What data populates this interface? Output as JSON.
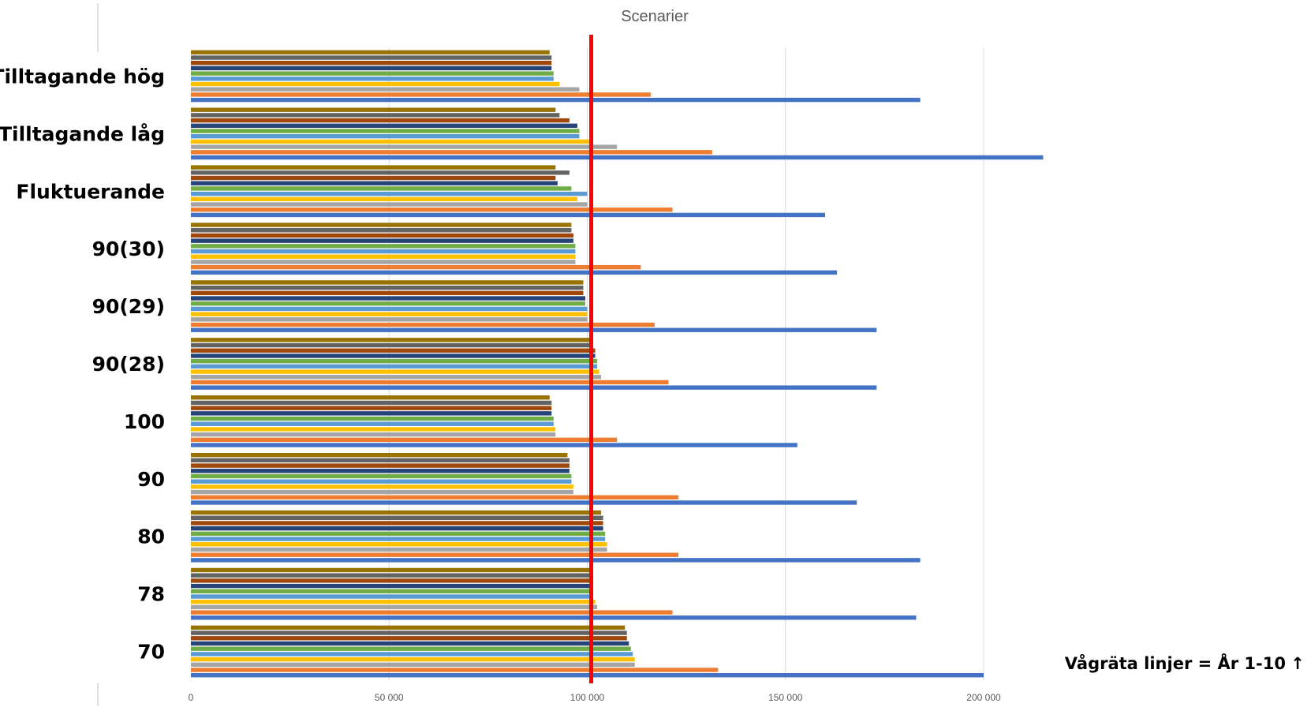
{
  "chart_data": {
    "type": "bar",
    "orientation": "horizontal",
    "title": "Scenarier",
    "categories": [
      "70",
      "78",
      "80",
      "90",
      "100",
      "90(28)",
      "90(29)",
      "90(30)",
      "Fluktuerande",
      "Tilltagande låg",
      "Tilltagande hög"
    ],
    "xlim": [
      0,
      200000
    ],
    "x_ticks": [
      0,
      50000,
      100000,
      150000,
      200000
    ],
    "x_tick_labels": [
      "0",
      "50 000",
      "100 000",
      "150 000",
      "200 000"
    ],
    "gridlines": true,
    "reference_line": {
      "value": 101000,
      "color": "#ff0000"
    },
    "annotation": "Vågräta linjer = År 1-10",
    "annotation_arrow": "↑",
    "series_colors": [
      "#4472c4",
      "#ed7d31",
      "#a5a5a5",
      "#ffc000",
      "#5b9bd5",
      "#70ad47",
      "#264478",
      "#9e480e",
      "#636363",
      "#997300"
    ],
    "series": [
      {
        "values": [
          200000,
          183000,
          184000,
          168000,
          153000,
          173000,
          173000,
          163000,
          160000,
          215000,
          184000
        ]
      },
      {
        "values": [
          133000,
          121500,
          123000,
          123000,
          107500,
          120500,
          117000,
          113500,
          121500,
          131500,
          116000
        ]
      },
      {
        "values": [
          112000,
          102500,
          105000,
          96500,
          92000,
          103500,
          100000,
          97000,
          100000,
          107500,
          98000
        ]
      },
      {
        "values": [
          112000,
          102000,
          105000,
          96500,
          92000,
          103000,
          100000,
          97000,
          97500,
          100500,
          93000
        ]
      },
      {
        "values": [
          111500,
          101500,
          104500,
          96000,
          91500,
          102500,
          100000,
          97000,
          100000,
          98000,
          91500
        ]
      },
      {
        "values": [
          111000,
          101000,
          104500,
          96000,
          91500,
          102500,
          99500,
          97000,
          96000,
          98000,
          91500
        ]
      },
      {
        "values": [
          110500,
          101000,
          104000,
          95500,
          91000,
          102000,
          99500,
          96500,
          92500,
          97500,
          91000
        ]
      },
      {
        "values": [
          110000,
          100500,
          104000,
          95500,
          91000,
          102000,
          99000,
          96500,
          92000,
          95500,
          91000
        ]
      },
      {
        "values": [
          110000,
          100500,
          104000,
          95500,
          91000,
          101500,
          99000,
          96000,
          95500,
          93000,
          91000
        ]
      },
      {
        "values": [
          109500,
          100500,
          103500,
          95000,
          90500,
          101500,
          99000,
          96000,
          92000,
          92000,
          90500
        ]
      }
    ]
  }
}
